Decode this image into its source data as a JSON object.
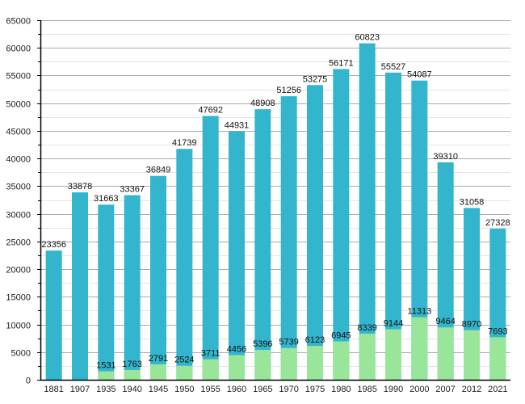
{
  "chart_data": {
    "type": "bar",
    "title": "",
    "xlabel": "",
    "ylabel": "",
    "ylim": [
      0,
      65000
    ],
    "y_major_step": 5000,
    "y_minor_step": 2500,
    "grid": true,
    "legend": "none",
    "overlay": true,
    "categories": [
      "1881",
      "1907",
      "1935",
      "1940",
      "1945",
      "1950",
      "1955",
      "1960",
      "1965",
      "1970",
      "1975",
      "1980",
      "1985",
      "1990",
      "2000",
      "2007",
      "2012",
      "2021"
    ],
    "yticks": [
      "0",
      "5000",
      "10000",
      "15000",
      "20000",
      "25000",
      "30000",
      "35000",
      "40000",
      "45000",
      "50000",
      "55000",
      "60000",
      "65000"
    ],
    "series": [
      {
        "name": "Total",
        "color": "#33b5cd",
        "values": [
          23356,
          33878,
          31663,
          33367,
          36849,
          41739,
          47692,
          44931,
          48908,
          51256,
          53275,
          56171,
          60823,
          55527,
          54087,
          39310,
          31058,
          27328
        ],
        "labels": [
          "23356",
          "33878",
          "31663",
          "33367",
          "36849",
          "41739",
          "47692",
          "44931",
          "48908",
          "51256",
          "53275",
          "56171",
          "60823",
          "55527",
          "54087",
          "39310",
          "31058",
          "27328"
        ]
      },
      {
        "name": "Subset",
        "color": "#99e69a",
        "values": [
          null,
          null,
          1531,
          1763,
          2791,
          2524,
          3711,
          4456,
          5396,
          5739,
          6123,
          6945,
          8339,
          9144,
          11313,
          9464,
          8970,
          7693
        ],
        "labels": [
          "",
          "",
          "1531",
          "1763",
          "2791",
          "2524",
          "3711",
          "4456",
          "5396",
          "5739",
          "6123",
          "6945",
          "8339",
          "9144",
          "11313",
          "9464",
          "8970",
          "7693"
        ]
      }
    ],
    "colors": {
      "major_grid": "#aaaaaa",
      "minor_grid": "#e4e4e4",
      "axis": "#000000"
    }
  }
}
